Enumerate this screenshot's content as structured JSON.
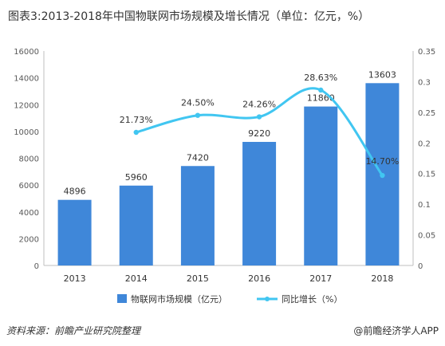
{
  "title": "图表3:2013-2018年中国物联网市场规模及增长情况（单位：亿元，%）",
  "source": "资料来源：前瞻产业研究院整理",
  "brand": "@前瞻经济学人APP",
  "colors": {
    "bar": "#3f87d9",
    "line": "#41c6f1",
    "axis": "#bfbfbf",
    "text": "#333333",
    "tick": "#595959"
  },
  "chart_data": {
    "type": "bar",
    "categories": [
      "2013",
      "2014",
      "2015",
      "2016",
      "2017",
      "2018"
    ],
    "y_left_ticks": [
      "0",
      "2000",
      "4000",
      "6000",
      "8000",
      "10000",
      "12000",
      "14000",
      "16000"
    ],
    "y_right_ticks": [
      "0",
      "0.05",
      "0.1",
      "0.15",
      "0.2",
      "0.25",
      "0.3",
      "0.35"
    ],
    "ylim_left": [
      0,
      16000
    ],
    "ylim_right": [
      0,
      0.35
    ],
    "grid": false,
    "legend_position": "bottom",
    "series": [
      {
        "name": "物联网市场规模（亿元）",
        "type": "bar",
        "axis": "left",
        "values": [
          4896,
          5960,
          7420,
          9220,
          11860,
          13603
        ],
        "labels": [
          "4896",
          "5960",
          "7420",
          "9220",
          "11860",
          "13603"
        ]
      },
      {
        "name": "同比增长（%）",
        "type": "line",
        "axis": "right",
        "values": [
          null,
          0.2173,
          0.245,
          0.2426,
          0.2863,
          0.147
        ],
        "labels": [
          "",
          "21.73%",
          "24.50%",
          "24.26%",
          "28.63%",
          "14.70%"
        ]
      }
    ]
  }
}
